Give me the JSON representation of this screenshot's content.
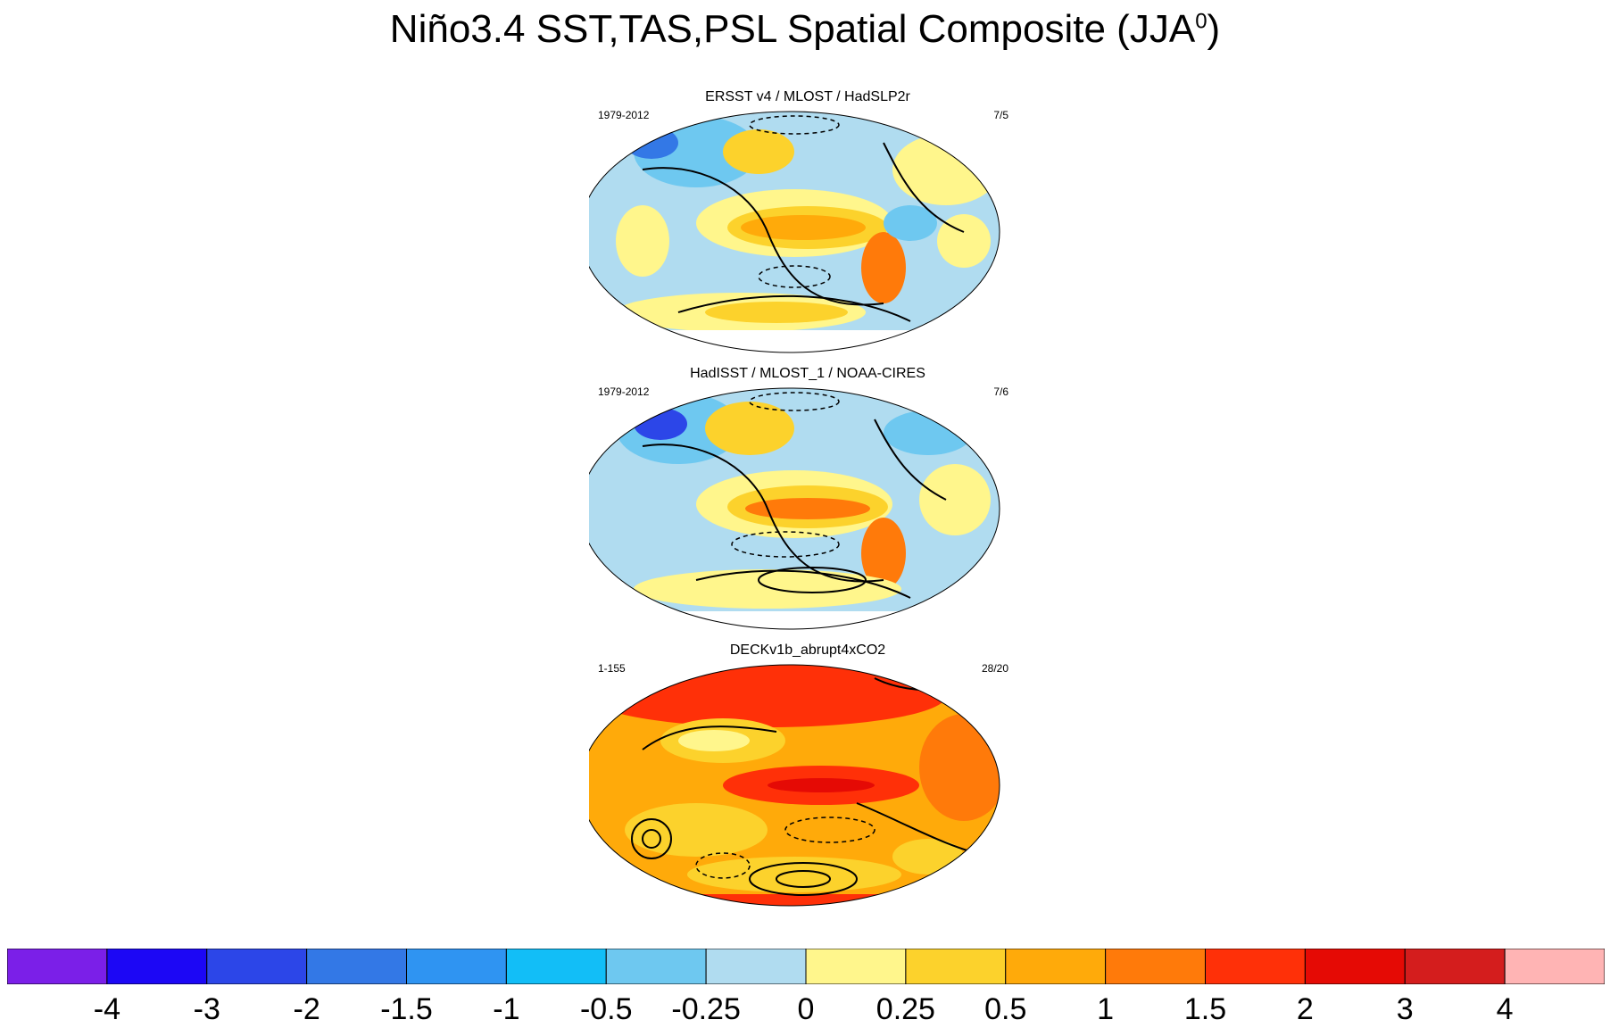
{
  "title_main": "Niño3.4 SST,TAS,PSL Spatial Composite (JJA",
  "title_sup": "0",
  "title_close": ")",
  "panels": [
    {
      "title": "ERSST v4 / MLOST / HadSLP2r",
      "left": "1979-2012",
      "right": "7/5"
    },
    {
      "title": "HadISST / MLOST_1 / NOAA-CIRES",
      "left": "1979-2012",
      "right": "7/6"
    },
    {
      "title": "DECKv1b_abrupt4xCO2",
      "left": "1-155",
      "right": "28/20"
    }
  ],
  "colorbar": {
    "colors": [
      "#7b1fe8",
      "#1c07f5",
      "#2c46e8",
      "#3378e6",
      "#2f94f2",
      "#12bef7",
      "#6ec8f0",
      "#b0dcf0",
      "#fff68c",
      "#fcd22c",
      "#ffaa0a",
      "#ff7a0a",
      "#ff3008",
      "#e50a05",
      "#d41d1d",
      "#ffb4b4"
    ],
    "labels": [
      "-4",
      "-3",
      "-2",
      "-1.5",
      "-1",
      "-0.5",
      "-0.25",
      "0",
      "0.25",
      "0.5",
      "1",
      "1.5",
      "2",
      "3",
      "4"
    ]
  }
}
